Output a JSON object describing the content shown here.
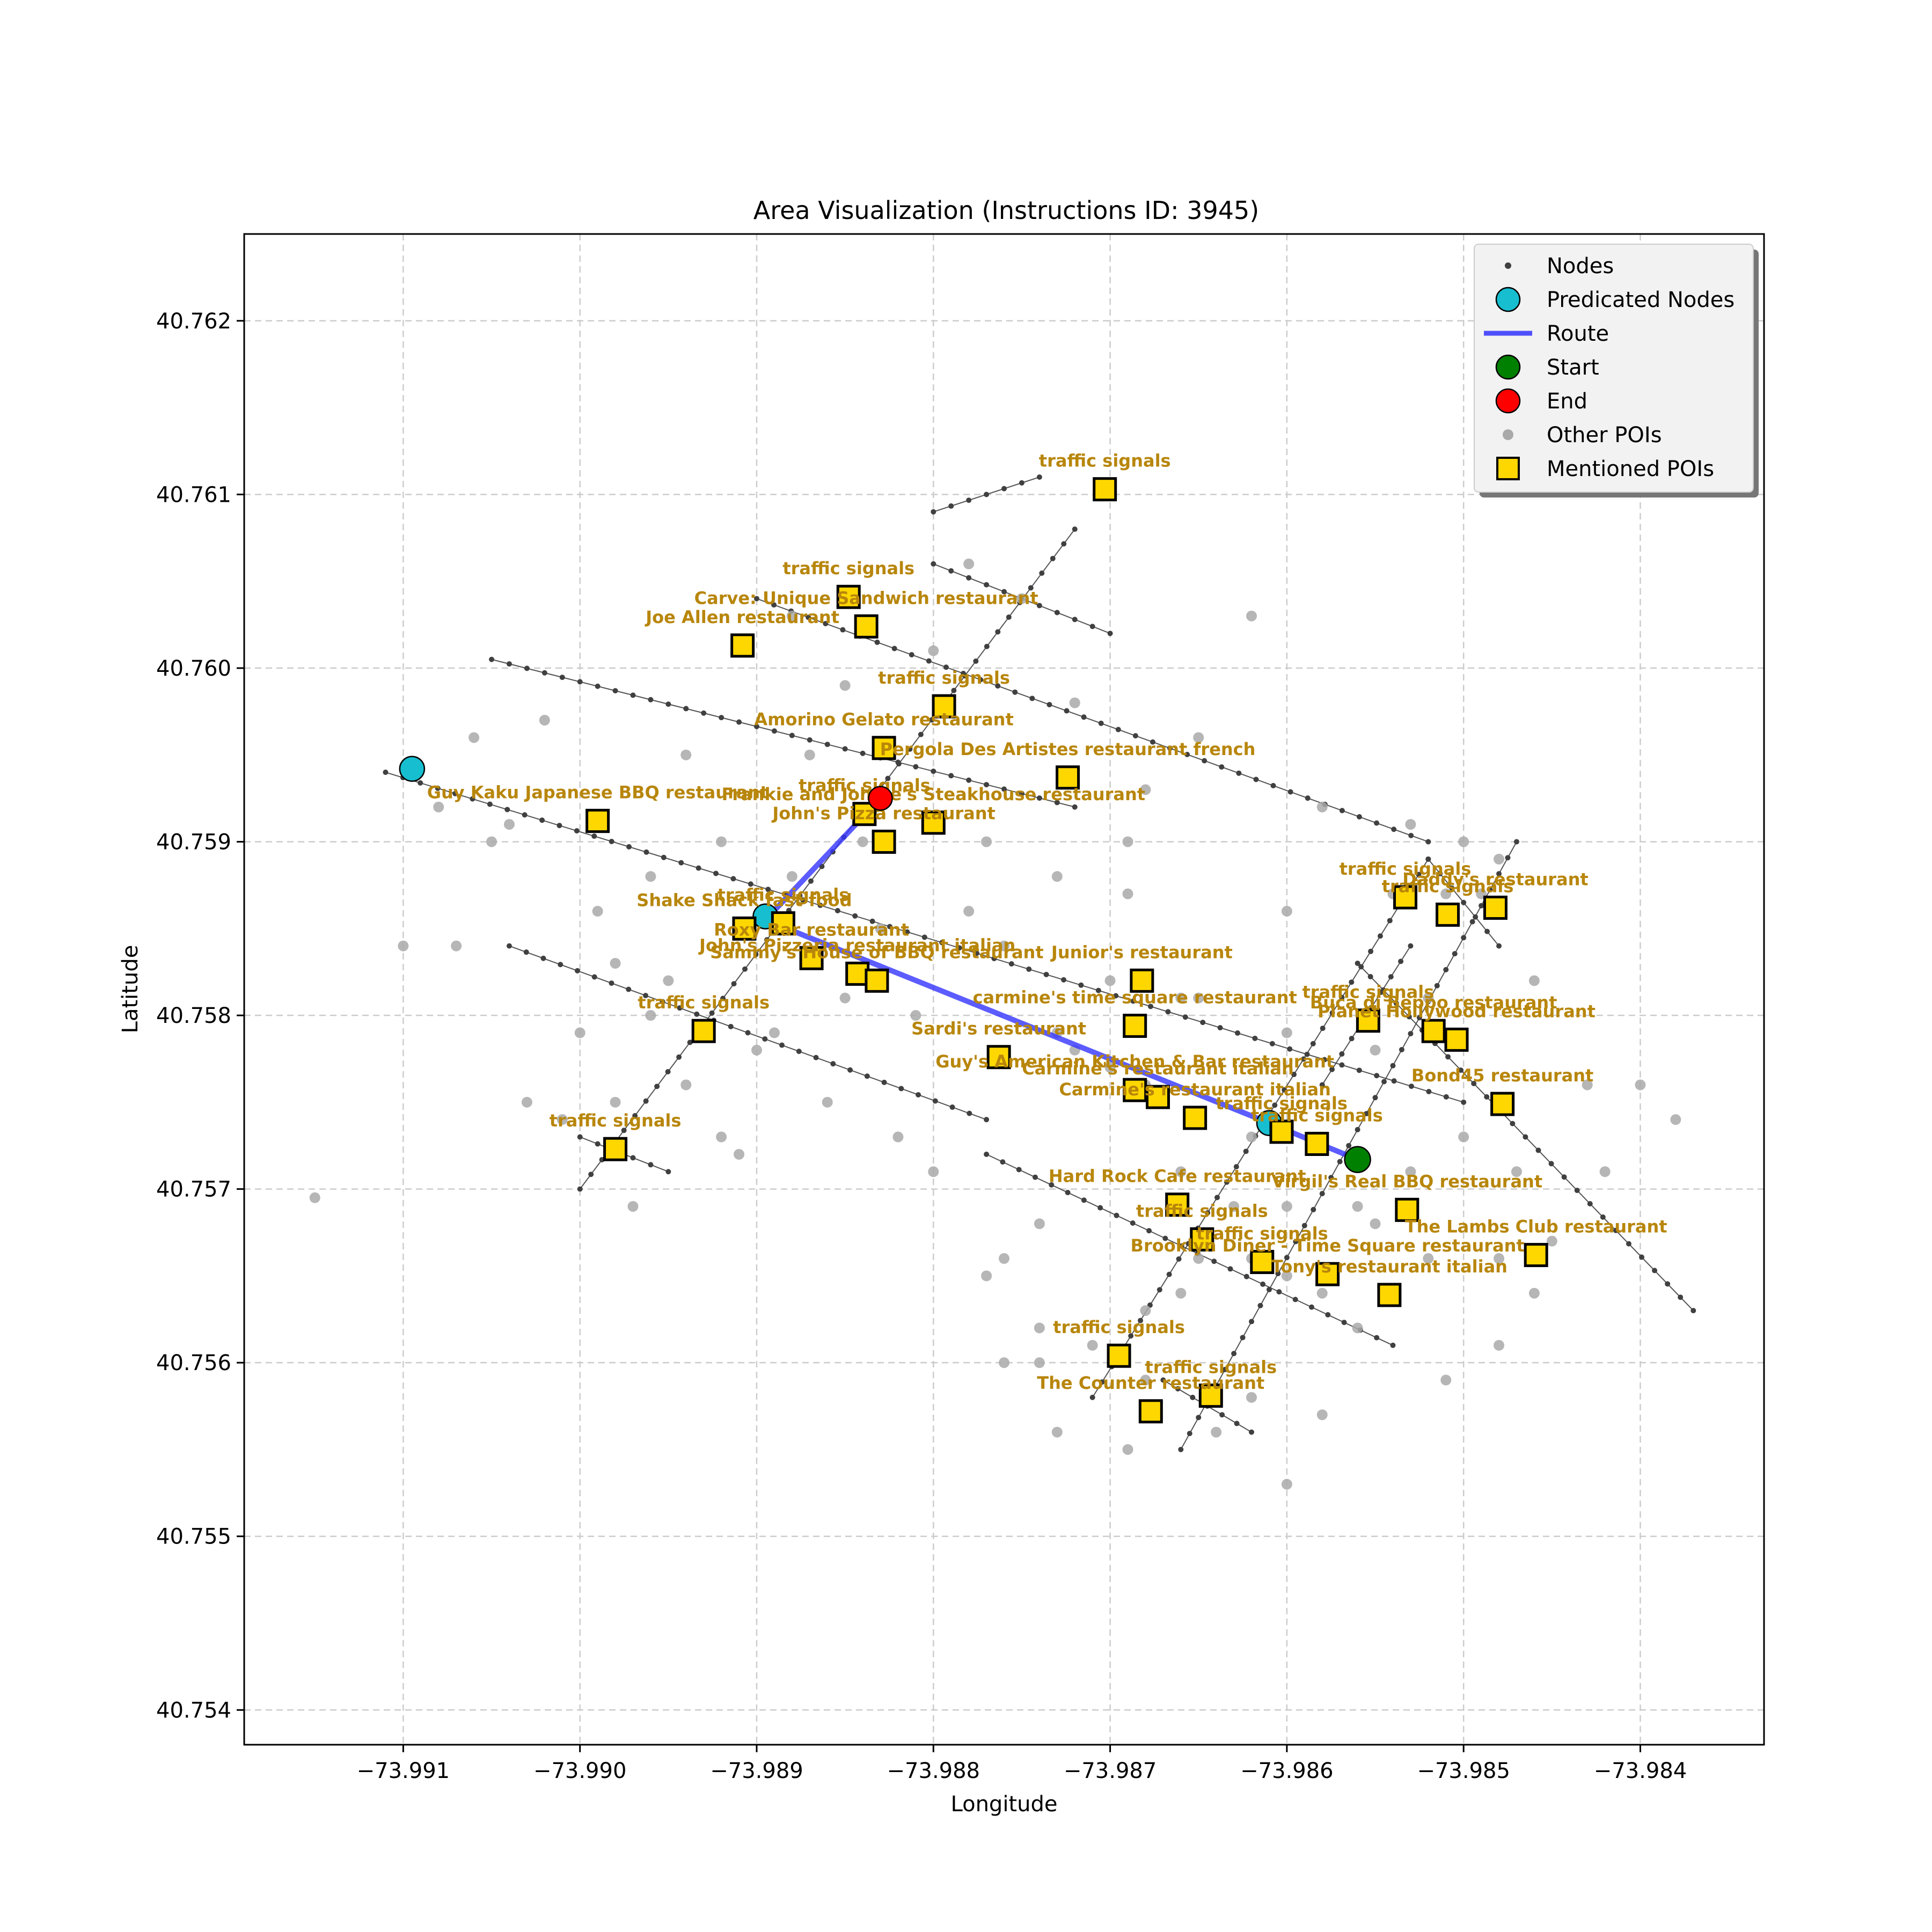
{
  "chart_data": {
    "type": "map",
    "title": "Area Visualization (Instructions ID: 3945)",
    "xlabel": "Longitude",
    "ylabel": "Latitude",
    "xlim": [
      -73.9919,
      -73.9833
    ],
    "ylim": [
      40.7538,
      40.7625
    ],
    "xticks": [
      -73.991,
      -73.99,
      -73.989,
      -73.988,
      -73.987,
      -73.986,
      -73.985,
      -73.984
    ],
    "xtick_labels": [
      "−73.991",
      "−73.990",
      "−73.989",
      "−73.988",
      "−73.987",
      "−73.986",
      "−73.985",
      "−73.984"
    ],
    "yticks": [
      40.754,
      40.755,
      40.756,
      40.757,
      40.758,
      40.759,
      40.76,
      40.761,
      40.762
    ],
    "ytick_labels": [
      "40.754",
      "40.755",
      "40.756",
      "40.757",
      "40.758",
      "40.759",
      "40.760",
      "40.761",
      "40.762"
    ],
    "grid": true,
    "legend_position": "top-right",
    "legend": [
      "Nodes",
      "Predicated Nodes",
      "Route",
      "Start",
      "End",
      "Other POIs",
      "Mentioned POIs"
    ],
    "colors": {
      "nodes": "#404040",
      "predicated": "#17becf",
      "route": "#3333ff",
      "start": "#008000",
      "end": "#ff0000",
      "other_poi": "#a9a9a9",
      "mentioned_fill": "#ffd700",
      "label": "#b8860b",
      "grid": "#cccccc"
    },
    "streets": [
      {
        "from": [
          -73.9905,
          40.76005
        ],
        "to": [
          -73.9872,
          40.7592
        ]
      },
      {
        "from": [
          -73.9911,
          40.7594
        ],
        "to": [
          -73.985,
          40.7575
        ]
      },
      {
        "from": [
          -73.9904,
          40.7584
        ],
        "to": [
          -73.9877,
          40.7574
        ]
      },
      {
        "from": [
          -73.989,
          40.7604
        ],
        "to": [
          -73.9852,
          40.759
        ]
      },
      {
        "from": [
          -73.9856,
          40.7583
        ],
        "to": [
          -73.9837,
          40.7563
        ]
      },
      {
        "from": [
          -73.9877,
          40.7572
        ],
        "to": [
          -73.9854,
          40.7561
        ]
      },
      {
        "from": [
          -73.988,
          40.7606
        ],
        "to": [
          -73.987,
          40.7602
        ]
      },
      {
        "from": [
          -73.9852,
          40.7589
        ],
        "to": [
          -73.9848,
          40.7584
        ]
      },
      {
        "from": [
          -73.9867,
          40.7559
        ],
        "to": [
          -73.9862,
          40.7556
        ]
      },
      {
        "from": [
          -73.988,
          40.7609
        ],
        "to": [
          -73.9874,
          40.7611
        ]
      },
      {
        "from": [
          -73.99,
          40.757
        ],
        "to": [
          -73.9872,
          40.7608
        ]
      },
      {
        "from": [
          -73.99,
          40.7573
        ],
        "to": [
          -73.9895,
          40.7571
        ]
      },
      {
        "from": [
          -73.9871,
          40.7558
        ],
        "to": [
          -73.9852,
          40.7589
        ]
      },
      {
        "from": [
          -73.9866,
          40.7555
        ],
        "to": [
          -73.9847,
          40.759
        ]
      },
      {
        "from": [
          -73.9858,
          40.7576
        ],
        "to": [
          -73.9853,
          40.7584
        ]
      }
    ],
    "route": [
      [
        -73.9883,
        40.75925
      ],
      [
        -73.98895,
        40.75855
      ],
      [
        -73.9861,
        40.75738
      ],
      [
        -73.9856,
        40.75717
      ]
    ],
    "predicated_nodes": [
      [
        -73.99095,
        40.75942
      ],
      [
        -73.98895,
        40.75857
      ],
      [
        -73.9861,
        40.75738
      ]
    ],
    "start": [
      -73.9856,
      40.75717
    ],
    "end": [
      -73.9883,
      40.75925
    ],
    "other_pois": [
      [
        -73.9915,
        40.75695
      ],
      [
        -73.991,
        40.7584
      ],
      [
        -73.9906,
        40.7596
      ],
      [
        -73.9904,
        40.7591
      ],
      [
        -73.9905,
        40.759
      ],
      [
        -73.9902,
        40.7597
      ],
      [
        -73.99,
        40.7579
      ],
      [
        -73.9898,
        40.7575
      ],
      [
        -73.9896,
        40.7588
      ],
      [
        -73.9892,
        40.759
      ],
      [
        -73.989,
        40.7578
      ],
      [
        -73.9887,
        40.7595
      ],
      [
        -73.9885,
        40.7581
      ],
      [
        -73.9883,
        40.7585
      ],
      [
        -73.9881,
        40.758
      ],
      [
        -73.9878,
        40.7586
      ],
      [
        -73.9876,
        40.7584
      ],
      [
        -73.9873,
        40.7579
      ],
      [
        -73.987,
        40.7582
      ],
      [
        -73.9868,
        40.7576
      ],
      [
        -73.9865,
        40.7581
      ],
      [
        -73.9862,
        40.7573
      ],
      [
        -73.986,
        40.7586
      ],
      [
        -73.9892,
        40.7573
      ],
      [
        -73.9895,
        40.7582
      ],
      [
        -73.9888,
        40.7603
      ],
      [
        -73.9885,
        40.7599
      ],
      [
        -73.988,
        40.7601
      ],
      [
        -73.9878,
        40.7606
      ],
      [
        -73.9875,
        40.7604
      ],
      [
        -73.9872,
        40.7598
      ],
      [
        -73.9868,
        40.7593
      ],
      [
        -73.9865,
        40.7596
      ],
      [
        -73.9862,
        40.7603
      ],
      [
        -73.986,
        40.7579
      ],
      [
        -73.9858,
        40.7592
      ],
      [
        -73.9853,
        40.7591
      ],
      [
        -73.985,
        40.759
      ],
      [
        -73.9848,
        40.7589
      ],
      [
        -73.9846,
        40.7582
      ],
      [
        -73.9843,
        40.7576
      ],
      [
        -73.984,
        40.7576
      ],
      [
        -73.9838,
        40.7574
      ],
      [
        -73.9842,
        40.7571
      ],
      [
        -73.9845,
        40.7567
      ],
      [
        -73.9848,
        40.7561
      ],
      [
        -73.9851,
        40.7559
      ],
      [
        -73.9855,
        40.7568
      ],
      [
        -73.9858,
        40.7564
      ],
      [
        -73.9862,
        40.7558
      ],
      [
        -73.9865,
        40.7566
      ],
      [
        -73.9868,
        40.7563
      ],
      [
        -73.9871,
        40.7561
      ],
      [
        -73.9874,
        40.7562
      ],
      [
        -73.9877,
        40.7565
      ],
      [
        -73.9873,
        40.7556
      ],
      [
        -73.9869,
        40.7555
      ],
      [
        -73.9864,
        40.7556
      ],
      [
        -73.986,
        40.7553
      ],
      [
        -73.9858,
        40.7557
      ],
      [
        -73.9876,
        40.7566
      ],
      [
        -73.9874,
        40.7568
      ],
      [
        -73.9866,
        40.7571
      ],
      [
        -73.988,
        40.7571
      ],
      [
        -73.9882,
        40.7573
      ],
      [
        -73.9886,
        40.7575
      ],
      [
        -73.9889,
        40.7579
      ],
      [
        -73.9888,
        40.7588
      ],
      [
        -73.9884,
        40.759
      ],
      [
        -73.9894,
        40.7576
      ],
      [
        -73.9896,
        40.758
      ],
      [
        -73.9898,
        40.7583
      ],
      [
        -73.9901,
        40.7574
      ],
      [
        -73.9903,
        40.7575
      ],
      [
        -73.9897,
        40.7569
      ],
      [
        -73.9891,
        40.7572
      ],
      [
        -73.9894,
        40.7595
      ],
      [
        -73.9899,
        40.7586
      ],
      [
        -73.9908,
        40.7592
      ],
      [
        -73.9907,
        40.7584
      ],
      [
        -73.9877,
        40.759
      ],
      [
        -73.9873,
        40.7588
      ],
      [
        -73.9869,
        40.759
      ],
      [
        -73.9869,
        40.7587
      ],
      [
        -73.9866,
        40.7581
      ],
      [
        -73.9872,
        40.7578
      ],
      [
        -73.987,
        40.7577
      ],
      [
        -73.9863,
        40.7569
      ],
      [
        -73.9855,
        40.7578
      ],
      [
        -73.9852,
        40.7581
      ],
      [
        -73.9849,
        40.7587
      ],
      [
        -73.9851,
        40.7587
      ],
      [
        -73.9854,
        40.7587
      ],
      [
        -73.9853,
        40.7571
      ],
      [
        -73.985,
        40.7573
      ],
      [
        -73.9847,
        40.7571
      ],
      [
        -73.9846,
        40.7564
      ],
      [
        -73.9848,
        40.7566
      ],
      [
        -73.9856,
        40.7569
      ],
      [
        -73.9852,
        40.7566
      ],
      [
        -73.986,
        40.7565
      ],
      [
        -73.9862,
        40.7566
      ],
      [
        -73.9866,
        40.7564
      ],
      [
        -73.9876,
        40.756
      ],
      [
        -73.9874,
        40.756
      ],
      [
        -73.9868,
        40.7559
      ],
      [
        -73.986,
        40.7569
      ],
      [
        -73.9856,
        40.7562
      ]
    ],
    "mentioned_pois": [
      {
        "label": "traffic signals",
        "lon": -73.98703,
        "lat": 40.76103
      },
      {
        "label": "traffic signals",
        "lon": -73.98848,
        "lat": 40.76041
      },
      {
        "label": "Carve: Unique Sandwich restaurant",
        "lon": -73.98838,
        "lat": 40.76024
      },
      {
        "label": "Joe Allen restaurant",
        "lon": -73.98908,
        "lat": 40.76013
      },
      {
        "label": "traffic signals",
        "lon": -73.98794,
        "lat": 40.75978
      },
      {
        "label": "Amorino Gelato restaurant",
        "lon": -73.98828,
        "lat": 40.75954
      },
      {
        "label": "Pergola Des Artistes restaurant french",
        "lon": -73.98724,
        "lat": 40.75937
      },
      {
        "label": "traffic signals",
        "lon": -73.98839,
        "lat": 40.75916
      },
      {
        "label": "Guy Kaku Japanese BBQ restaurant",
        "lon": -73.9899,
        "lat": 40.75912
      },
      {
        "label": "Frankie and Johnie's Steakhouse restaurant",
        "lon": -73.988,
        "lat": 40.75911
      },
      {
        "label": "John's Pizza restaurant",
        "lon": -73.98828,
        "lat": 40.759
      },
      {
        "label": "traffic signals",
        "lon": -73.98885,
        "lat": 40.75853
      },
      {
        "label": "Shake Shack fast food",
        "lon": -73.98907,
        "lat": 40.7585
      },
      {
        "label": "Roxy Bar restaurant",
        "lon": -73.98869,
        "lat": 40.75833
      },
      {
        "label": "John's Pizzeria restaurant italian",
        "lon": -73.98843,
        "lat": 40.75824
      },
      {
        "label": "Sammy's House of BBQ restaurant",
        "lon": -73.98832,
        "lat": 40.7582
      },
      {
        "label": "traffic signals",
        "lon": -73.9893,
        "lat": 40.75791
      },
      {
        "label": "traffic signals",
        "lon": -73.9898,
        "lat": 40.75723
      },
      {
        "label": "Junior's restaurant",
        "lon": -73.98682,
        "lat": 40.7582
      },
      {
        "label": "carmine's time square restaurant",
        "lon": -73.98686,
        "lat": 40.75794
      },
      {
        "label": "Sardi's restaurant",
        "lon": -73.98763,
        "lat": 40.75776
      },
      {
        "label": "Guy's American Kitchen & Bar restaurant",
        "lon": -73.98686,
        "lat": 40.75757
      },
      {
        "label": "Carmine's restaurant italian",
        "lon": -73.98673,
        "lat": 40.75753
      },
      {
        "label": "Carmine's restaurant italian",
        "lon": -73.98652,
        "lat": 40.75741
      },
      {
        "label": "traffic signals",
        "lon": -73.98603,
        "lat": 40.75733
      },
      {
        "label": "traffic signals",
        "lon": -73.98583,
        "lat": 40.75726
      },
      {
        "label": "traffic signals",
        "lon": -73.98533,
        "lat": 40.75868
      },
      {
        "label": "traffic signals",
        "lon": -73.98509,
        "lat": 40.75858
      },
      {
        "label": "Daddy's restaurant",
        "lon": -73.98482,
        "lat": 40.75862
      },
      {
        "label": "traffic signals",
        "lon": -73.98554,
        "lat": 40.75797
      },
      {
        "label": "Buca di Beppo restaurant",
        "lon": -73.98517,
        "lat": 40.75791
      },
      {
        "label": "Planet Hollywood restaurant",
        "lon": -73.98504,
        "lat": 40.75786
      },
      {
        "label": "Bond45 restaurant",
        "lon": -73.98478,
        "lat": 40.75749
      },
      {
        "label": "Hard Rock Cafe restaurant",
        "lon": -73.98662,
        "lat": 40.75691
      },
      {
        "label": "Virgil's Real BBQ restaurant",
        "lon": -73.98532,
        "lat": 40.75688
      },
      {
        "label": "traffic signals",
        "lon": -73.98648,
        "lat": 40.75671
      },
      {
        "label": "traffic signals",
        "lon": -73.98614,
        "lat": 40.75658
      },
      {
        "label": "Brooklyn Diner - Time Square restaurant",
        "lon": -73.98577,
        "lat": 40.75651
      },
      {
        "label": "Tony's restaurant italian",
        "lon": -73.98542,
        "lat": 40.75639
      },
      {
        "label": "The Lambs Club restaurant",
        "lon": -73.98459,
        "lat": 40.75662
      },
      {
        "label": "traffic signals",
        "lon": -73.98695,
        "lat": 40.75604
      },
      {
        "label": "traffic signals",
        "lon": -73.98643,
        "lat": 40.75581
      },
      {
        "label": "The Counter restaurant",
        "lon": -73.98677,
        "lat": 40.75572
      }
    ]
  }
}
